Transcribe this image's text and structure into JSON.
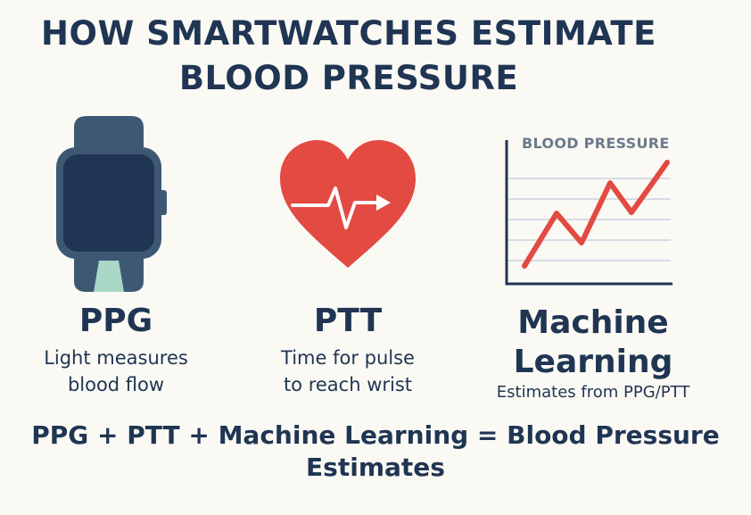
{
  "title": {
    "line1": "HOW SMARTWATCHES ESTIMATE",
    "line2": "BLOOD PRESSURE"
  },
  "columns": [
    {
      "icon": "smartwatch-icon",
      "title": "PPG",
      "desc_line1": "Light measures",
      "desc_line2": "blood flow"
    },
    {
      "icon": "heart-pulse-icon",
      "title": "PTT",
      "desc_line1": "Time for pulse",
      "desc_line2": "to reach wrist"
    },
    {
      "icon": "line-chart-icon",
      "title_line1": "Machine",
      "title_line2": "Learning",
      "desc": "Estimates from PPG/PTT",
      "chart_label": "BLOOD PRESSURE"
    }
  ],
  "summary": {
    "line1": "PPG + PTT + Machine Learning = Blood Pressure",
    "line2": "Estimates"
  },
  "colors": {
    "navy": "#1f3553",
    "watch_body": "#3e5874",
    "watch_screen": "#1f3553",
    "watch_light": "#a9d8c6",
    "heart_red": "#e24a42",
    "chart_line": "#e24a42",
    "gridline": "#c9d3df",
    "background": "#fbf9f4"
  }
}
